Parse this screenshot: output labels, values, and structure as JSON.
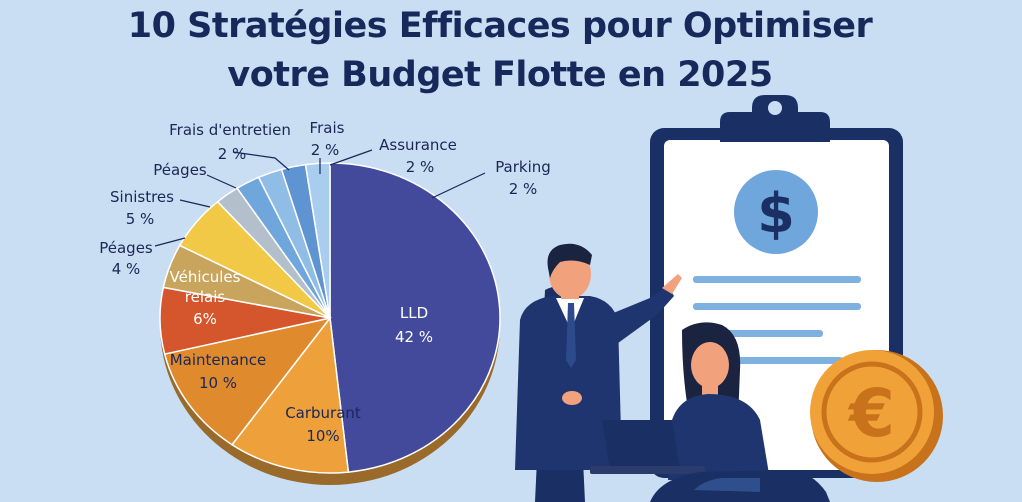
{
  "title_line1": "10 Stratégies Efficaces pour Optimiser",
  "title_line2": "votre Budget Flotte en 2025",
  "chart_data": {
    "type": "pie",
    "title": "10 Stratégies Efficaces pour Optimiser votre Budget Flotte en 2025",
    "slices": [
      {
        "label": "LLD",
        "value": 42,
        "display": "42 %",
        "color": "#434a9c"
      },
      {
        "label": "Carburant",
        "value": 10,
        "display": "10%",
        "color": "#eea13a"
      },
      {
        "label": "Maintenance",
        "value": 10,
        "display": "10 %",
        "color": "#df8a2c"
      },
      {
        "label": "Véhicules relais",
        "value": 6,
        "display": "6%",
        "color": "#d5552c"
      },
      {
        "label": "Péages",
        "value": 4,
        "display": "4 %",
        "color": "#c8a45c"
      },
      {
        "label": "Sinistres",
        "value": 5,
        "display": "5 %",
        "color": "#f1c946"
      },
      {
        "label": "Péages",
        "value": 2,
        "display": "",
        "color": "#b3bfcb"
      },
      {
        "label": "Frais d'entretien",
        "value": 2,
        "display": "2 %",
        "color": "#6fa6dc"
      },
      {
        "label": "Frais",
        "value": 2,
        "display": "2 %",
        "color": "#8fbde6"
      },
      {
        "label": "Assurance",
        "value": 2,
        "display": "2 %",
        "color": "#5f94d2"
      },
      {
        "label": "Parking",
        "value": 2,
        "display": "2 %",
        "color": "#a9cdee"
      }
    ]
  },
  "icons": {
    "dollar": "$",
    "euro": "€"
  }
}
